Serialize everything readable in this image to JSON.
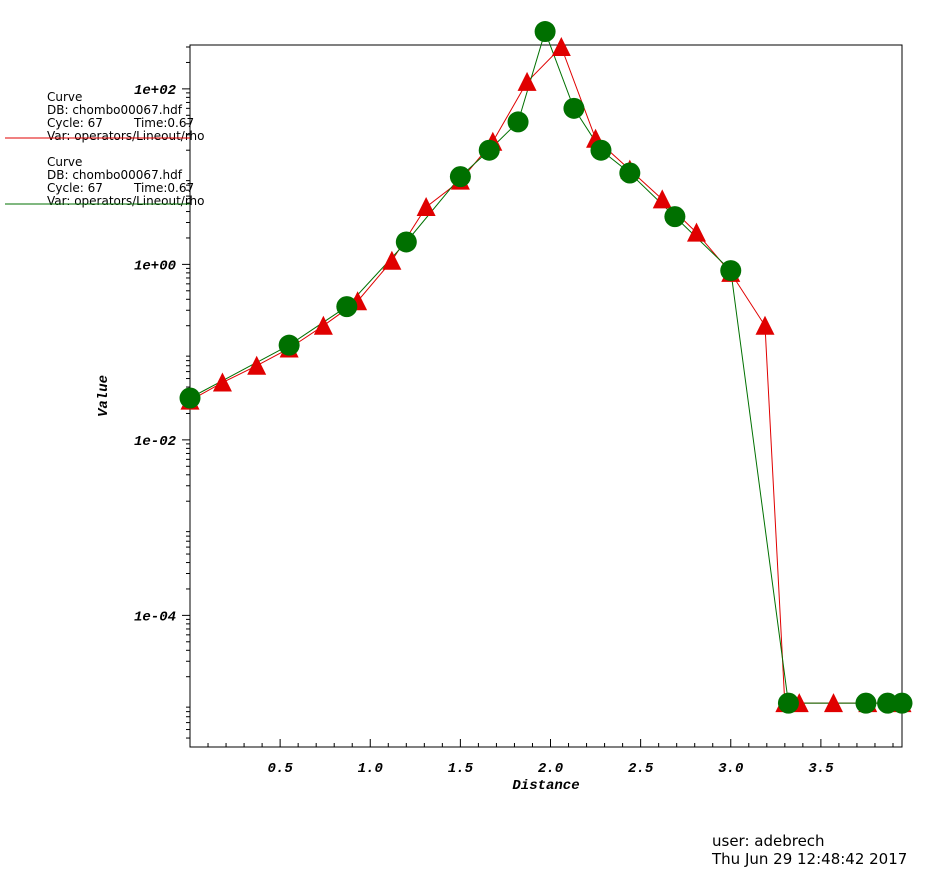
{
  "chart_data": {
    "type": "line",
    "xlabel": "Distance",
    "ylabel": "Value",
    "xlim": [
      0.0,
      3.95
    ],
    "ylim_log10": [
      -5.5,
      2.5
    ],
    "y_scale": "log",
    "x_ticks": [
      "0.5",
      "1.0",
      "1.5",
      "2.0",
      "2.5",
      "3.0",
      "3.5"
    ],
    "x_tick_values": [
      0.5,
      1.0,
      1.5,
      2.0,
      2.5,
      3.0,
      3.5
    ],
    "y_ticks": [
      "1e+02",
      "1e+00",
      "1e-02",
      "1e-04"
    ],
    "y_tick_values_log10": [
      2,
      0,
      -2,
      -4
    ],
    "legend_position": "top-left",
    "series": [
      {
        "legend": [
          "Curve",
          "DB: chombo00067.hdf",
          "Cycle: 67",
          "Time:0.67",
          "Var: operators/Lineout/rho"
        ],
        "color": "#e00000",
        "marker": "triangle",
        "x": [
          0.0,
          0.18,
          0.37,
          0.55,
          0.74,
          0.93,
          1.12,
          1.31,
          1.5,
          1.68,
          1.87,
          2.06,
          2.25,
          2.44,
          2.62,
          2.81,
          3.0,
          3.19,
          3.3,
          3.38,
          3.57,
          3.76,
          3.95
        ],
        "y": [
          0.028,
          0.045,
          0.07,
          0.11,
          0.2,
          0.38,
          1.1,
          4.5,
          9.0,
          25.0,
          120.0,
          300.0,
          27.0,
          12.0,
          5.5,
          2.3,
          0.8,
          0.2,
          1e-05,
          1e-05,
          1e-05,
          1e-05,
          1e-05
        ]
      },
      {
        "legend": [
          "Curve",
          "DB: chombo00067.hdf",
          "Cycle: 67",
          "Time:0.67",
          "Var: operators/Lineout/rho"
        ],
        "color": "#007000",
        "marker": "circle",
        "x": [
          0.0,
          0.55,
          0.87,
          1.2,
          1.5,
          1.66,
          1.82,
          1.97,
          2.13,
          2.28,
          2.44,
          2.69,
          3.0,
          3.32,
          3.75,
          3.87,
          3.95
        ],
        "y": [
          0.03,
          0.12,
          0.33,
          1.8,
          10.0,
          20.0,
          42.0,
          450.0,
          60.0,
          20.0,
          11.0,
          3.5,
          0.85,
          1e-05,
          1e-05,
          1e-05,
          1e-05
        ]
      }
    ]
  },
  "footer": {
    "user": "user: adebrech",
    "date": "Thu Jun 29 12:48:42 2017"
  }
}
